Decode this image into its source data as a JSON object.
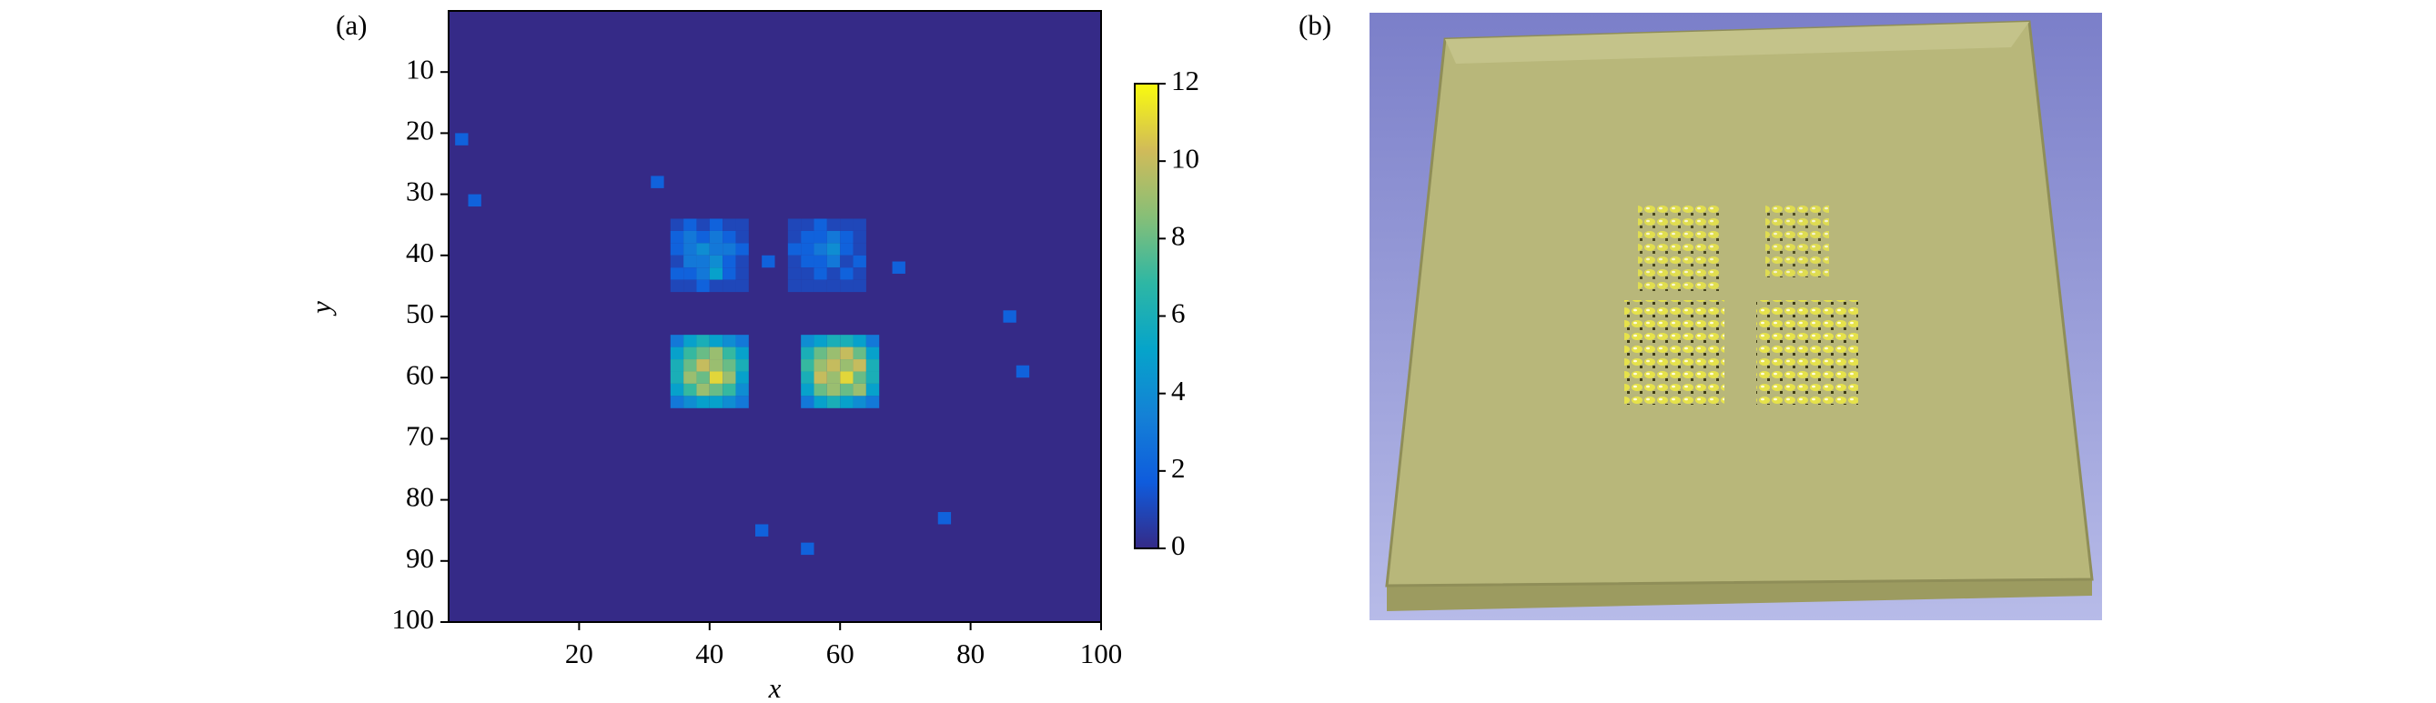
{
  "chart_data": {
    "type": "heatmap",
    "panel_label": "(a)",
    "xlabel": "x",
    "ylabel": "y",
    "xlim": [
      0,
      100
    ],
    "xticks": [
      20,
      40,
      60,
      80,
      100
    ],
    "ylim": [
      100,
      0
    ],
    "yticks": [
      10,
      20,
      30,
      40,
      50,
      60,
      70,
      80,
      90,
      100
    ],
    "clim": [
      0,
      12
    ],
    "cticks": [
      0,
      2,
      4,
      6,
      8,
      10,
      12
    ],
    "colormap": [
      "#352a87",
      "#0f5cdd",
      "#1481d6",
      "#06a4ca",
      "#2eb7a4",
      "#87bf77",
      "#d1bb59",
      "#f9fb0e"
    ],
    "x": [
      35,
      37,
      39,
      41,
      43,
      45,
      35,
      37,
      39,
      41,
      43,
      45,
      35,
      37,
      39,
      41,
      43,
      45,
      35,
      37,
      39,
      41,
      43,
      45,
      35,
      37,
      39,
      41,
      43,
      45,
      35,
      37,
      39,
      41,
      43,
      45,
      53,
      55,
      57,
      59,
      61,
      63,
      53,
      55,
      57,
      59,
      61,
      63,
      53,
      55,
      57,
      59,
      61,
      63,
      53,
      55,
      57,
      59,
      61,
      63,
      53,
      55,
      57,
      59,
      61,
      63,
      53,
      55,
      57,
      59,
      61,
      63,
      35,
      37,
      39,
      41,
      43,
      45,
      35,
      37,
      39,
      41,
      43,
      45,
      35,
      37,
      39,
      41,
      43,
      45,
      35,
      37,
      39,
      41,
      43,
      45,
      35,
      37,
      39,
      41,
      43,
      45,
      35,
      37,
      39,
      41,
      43,
      45,
      55,
      57,
      59,
      61,
      63,
      65,
      55,
      57,
      59,
      61,
      63,
      65,
      55,
      57,
      59,
      61,
      63,
      65,
      55,
      57,
      59,
      61,
      63,
      65,
      55,
      57,
      59,
      61,
      63,
      65,
      55,
      57,
      59,
      61,
      63,
      65,
      2,
      4,
      32,
      49,
      69,
      86,
      88,
      76,
      48,
      55
    ],
    "y": [
      35,
      35,
      35,
      35,
      35,
      35,
      37,
      37,
      37,
      37,
      37,
      37,
      39,
      39,
      39,
      39,
      39,
      39,
      41,
      41,
      41,
      41,
      41,
      41,
      43,
      43,
      43,
      43,
      43,
      43,
      45,
      45,
      45,
      45,
      45,
      45,
      35,
      35,
      35,
      35,
      35,
      35,
      37,
      37,
      37,
      37,
      37,
      37,
      39,
      39,
      39,
      39,
      39,
      39,
      41,
      41,
      41,
      41,
      41,
      41,
      43,
      43,
      43,
      43,
      43,
      43,
      45,
      45,
      45,
      45,
      45,
      45,
      54,
      54,
      54,
      54,
      54,
      54,
      56,
      56,
      56,
      56,
      56,
      56,
      58,
      58,
      58,
      58,
      58,
      58,
      60,
      60,
      60,
      60,
      60,
      60,
      62,
      62,
      62,
      62,
      62,
      62,
      64,
      64,
      64,
      64,
      64,
      64,
      54,
      54,
      54,
      54,
      54,
      54,
      56,
      56,
      56,
      56,
      56,
      56,
      58,
      58,
      58,
      58,
      58,
      58,
      60,
      60,
      60,
      60,
      60,
      60,
      62,
      62,
      62,
      62,
      62,
      62,
      64,
      64,
      64,
      64,
      64,
      64,
      21,
      31,
      28,
      41,
      42,
      50,
      59,
      83,
      85,
      88
    ],
    "values": [
      1,
      2,
      1,
      2,
      1,
      1,
      2,
      3,
      2,
      3,
      2,
      1,
      2,
      3,
      4,
      3,
      3,
      2,
      1,
      3,
      3,
      4,
      2,
      1,
      2,
      2,
      3,
      5,
      2,
      1,
      1,
      1,
      2,
      1,
      1,
      1,
      1,
      1,
      2,
      1,
      1,
      1,
      1,
      2,
      2,
      3,
      2,
      1,
      2,
      2,
      3,
      4,
      2,
      1,
      1,
      2,
      2,
      3,
      1,
      2,
      1,
      1,
      2,
      1,
      2,
      1,
      1,
      1,
      1,
      1,
      1,
      1,
      3,
      5,
      6,
      5,
      4,
      3,
      5,
      7,
      8,
      9,
      7,
      5,
      6,
      8,
      10,
      9,
      8,
      6,
      6,
      9,
      8,
      11,
      9,
      5,
      5,
      7,
      9,
      8,
      7,
      4,
      3,
      4,
      5,
      5,
      4,
      3,
      4,
      5,
      6,
      6,
      5,
      3,
      6,
      8,
      9,
      10,
      8,
      5,
      7,
      9,
      10,
      9,
      10,
      6,
      6,
      10,
      9,
      11,
      8,
      6,
      5,
      8,
      9,
      8,
      9,
      5,
      3,
      5,
      6,
      5,
      4,
      3,
      2,
      2,
      2,
      2,
      2,
      2,
      2,
      2,
      2,
      2
    ]
  },
  "image_panel": {
    "label": "(b)"
  }
}
